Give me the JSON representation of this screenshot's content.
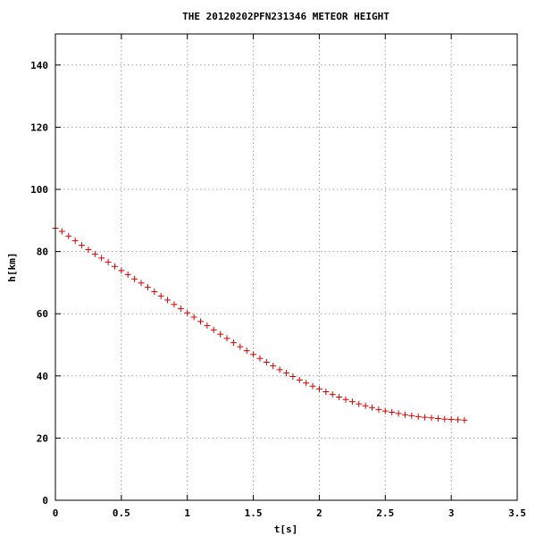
{
  "chart_data": {
    "type": "scatter",
    "title": "THE 20120202PFN231346 METEOR HEIGHT",
    "xlabel": "t[s]",
    "ylabel": "h[km]",
    "xlim": [
      0,
      3.5
    ],
    "ylim": [
      0,
      150
    ],
    "xticks": [
      0,
      0.5,
      1,
      1.5,
      2,
      2.5,
      3,
      3.5
    ],
    "xtick_labels": [
      "0",
      "0.5",
      "1",
      "1.5",
      "2",
      "2.5",
      "3",
      "3.5"
    ],
    "yticks": [
      0,
      20,
      40,
      60,
      80,
      100,
      120,
      140
    ],
    "ytick_labels": [
      "0",
      "20",
      "40",
      "60",
      "80",
      "100",
      "120",
      "140"
    ],
    "grid": true,
    "marker": "plus",
    "series": [
      {
        "color": "#dd0000",
        "x": [
          0.0,
          0.05,
          0.1,
          0.15,
          0.2,
          0.25,
          0.3,
          0.35,
          0.4,
          0.45,
          0.5,
          0.55,
          0.6,
          0.65,
          0.7,
          0.75,
          0.8,
          0.85,
          0.9,
          0.95,
          1.0,
          1.05,
          1.1,
          1.15,
          1.2,
          1.25,
          1.3,
          1.35,
          1.4,
          1.45,
          1.5,
          1.55,
          1.6,
          1.65,
          1.7,
          1.75,
          1.8,
          1.85,
          1.9,
          1.95,
          2.0,
          2.05,
          2.1,
          2.15,
          2.2,
          2.25,
          2.3,
          2.35,
          2.4,
          2.45,
          2.5,
          2.55,
          2.6,
          2.65,
          2.7,
          2.75,
          2.8,
          2.85,
          2.9,
          2.95,
          3.0,
          3.05,
          3.1
        ],
        "y": [
          87.5,
          86.5,
          85.0,
          83.5,
          82.0,
          80.6,
          79.2,
          77.9,
          76.6,
          75.2,
          73.9,
          72.6,
          71.2,
          69.9,
          68.5,
          67.1,
          65.7,
          64.4,
          63.0,
          61.6,
          60.3,
          58.9,
          57.5,
          56.2,
          54.8,
          53.4,
          52.1,
          50.7,
          49.4,
          48.1,
          46.9,
          45.6,
          44.4,
          43.2,
          42.0,
          40.9,
          39.8,
          38.7,
          37.7,
          36.7,
          35.8,
          34.9,
          34.0,
          33.2,
          32.4,
          31.7,
          31.0,
          30.4,
          29.8,
          29.2,
          28.7,
          28.3,
          27.9,
          27.5,
          27.2,
          26.9,
          26.7,
          26.5,
          26.3,
          26.1,
          26.0,
          25.9,
          25.8
        ]
      }
    ]
  }
}
